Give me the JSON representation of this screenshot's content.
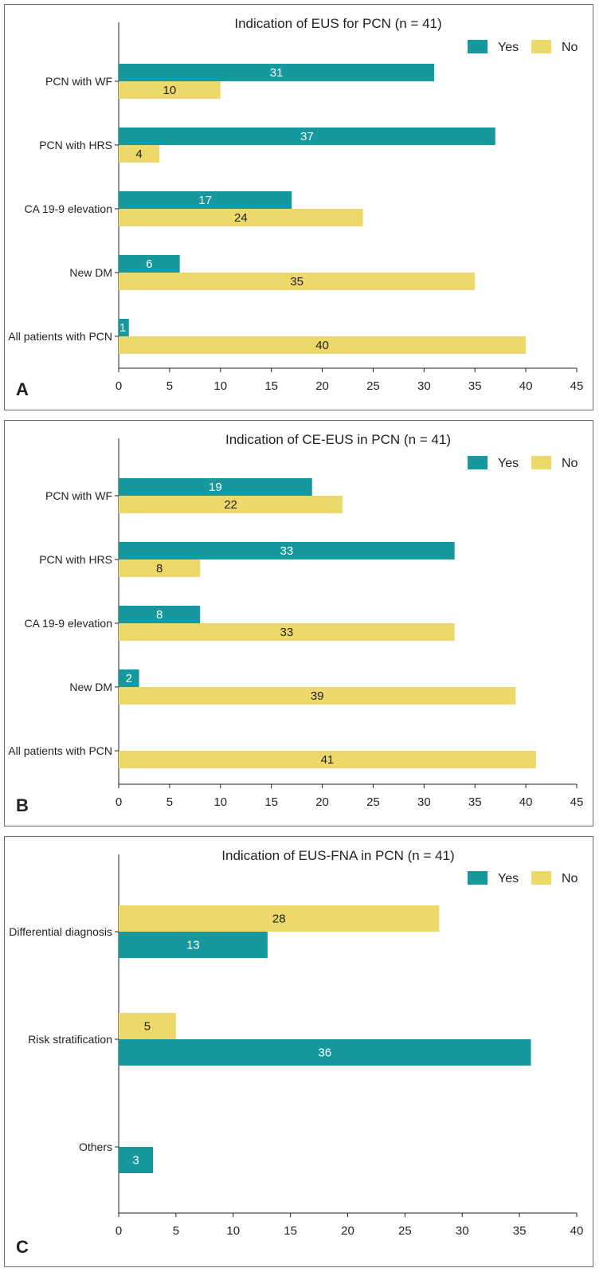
{
  "colors": {
    "yes": "#17989c",
    "no": "#ecd96a",
    "axis": "#231f20",
    "yes_text": "#ffffff",
    "no_text": "#231f20"
  },
  "chart_data": [
    {
      "type": "bar",
      "orientation": "horizontal",
      "panel": "A",
      "title": "Indication of EUS for PCN (n = 41)",
      "categories": [
        "PCN with WF",
        "PCN with HRS",
        "CA 19-9 elevation",
        "New DM",
        "All patients with PCN"
      ],
      "series": [
        {
          "name": "Yes",
          "values": [
            31,
            37,
            17,
            6,
            1
          ]
        },
        {
          "name": "No",
          "values": [
            10,
            4,
            24,
            35,
            40
          ]
        }
      ],
      "series_order_in_group": [
        "Yes",
        "No"
      ],
      "xlim": [
        0,
        45
      ],
      "xticks": [
        0,
        5,
        10,
        15,
        20,
        25,
        30,
        35,
        40,
        45
      ],
      "legend": "top-right",
      "grid": false
    },
    {
      "type": "bar",
      "orientation": "horizontal",
      "panel": "B",
      "title": "Indication of CE-EUS in PCN (n = 41)",
      "categories": [
        "PCN with WF",
        "PCN with HRS",
        "CA 19-9 elevation",
        "New DM",
        "All patients with PCN"
      ],
      "series": [
        {
          "name": "Yes",
          "values": [
            19,
            33,
            8,
            2,
            0
          ]
        },
        {
          "name": "No",
          "values": [
            22,
            8,
            33,
            39,
            41
          ]
        }
      ],
      "series_order_in_group": [
        "Yes",
        "No"
      ],
      "xlim": [
        0,
        45
      ],
      "xticks": [
        0,
        5,
        10,
        15,
        20,
        25,
        30,
        35,
        40,
        45
      ],
      "legend": "top-right",
      "grid": false
    },
    {
      "type": "bar",
      "orientation": "horizontal",
      "panel": "C",
      "title": "Indication of EUS-FNA in PCN (n = 41)",
      "categories": [
        "Differential diagnosis",
        "Risk stratification",
        "Others"
      ],
      "series": [
        {
          "name": "Yes",
          "values": [
            13,
            36,
            3
          ]
        },
        {
          "name": "No",
          "values": [
            28,
            5,
            0
          ]
        }
      ],
      "series_order_in_group": [
        "No",
        "Yes"
      ],
      "xlim": [
        0,
        40
      ],
      "xticks": [
        0,
        5,
        10,
        15,
        20,
        25,
        30,
        35,
        40
      ],
      "legend": "top-right",
      "grid": false
    }
  ]
}
